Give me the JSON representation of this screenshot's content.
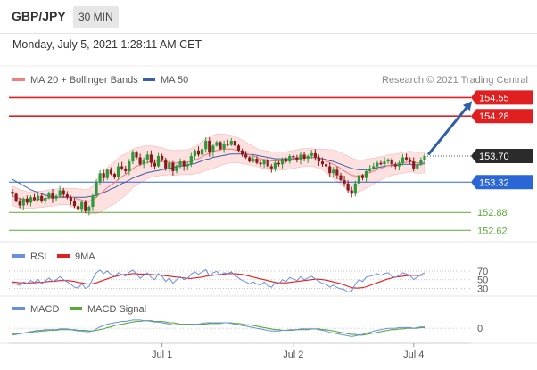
{
  "header": {
    "pair": "GBP/JPY",
    "timeframe": "30 MIN",
    "timestamp": "Monday, July 5, 2021 1:28:11 AM CET"
  },
  "colors": {
    "ma20": "#f08080",
    "ma50": "#3a5fa8",
    "band_fill": "#fde0e0",
    "resistance": "#e02020",
    "support_blue": "#2a66d6",
    "support_green": "#5aaa3a",
    "candle_up": "#2c9a3a",
    "candle_down": "#8a1a1a",
    "arrow": "#2f5fa8",
    "rsi": "#6a8fe0",
    "rsi_ma": "#e02020",
    "macd": "#6a8fe0",
    "macd_signal": "#5aaa3a"
  },
  "chart_data": [
    {
      "type": "candlestick",
      "legend": [
        {
          "name": "MA 20 + Bollinger Bands",
          "color": "#f08080"
        },
        {
          "name": "MA 50",
          "color": "#3a5fa8"
        }
      ],
      "copyright": "Research © 2021 Trading Central",
      "ylim": [
        152.52,
        154.62
      ],
      "x_ticks": [
        "Jul 1",
        "Jul 2",
        "Jul 4"
      ],
      "x_tick_index": [
        41,
        77,
        110
      ],
      "last_price": {
        "label": "153.70",
        "value": 153.7
      },
      "levels": [
        {
          "label": "154.55",
          "value": 154.55,
          "kind": "resistance",
          "color": "#e02020",
          "tag": true
        },
        {
          "label": "154.28",
          "value": 154.28,
          "kind": "resistance",
          "color": "#e02020",
          "tag": true
        },
        {
          "label": "153.32",
          "value": 153.32,
          "kind": "support",
          "color": "#2a66d6",
          "tag": true
        },
        {
          "label": "152.88",
          "value": 152.88,
          "kind": "support",
          "color": "#5aaa3a",
          "tag": false
        },
        {
          "label": "152.62",
          "value": 152.62,
          "kind": "support",
          "color": "#5aaa3a",
          "tag": false
        }
      ],
      "arrow": {
        "from_index": 114,
        "from_value": 153.72,
        "to_index": 126,
        "to_value": 154.5
      },
      "close": [
        153.15,
        153.05,
        152.98,
        153.08,
        153.02,
        153.1,
        153.06,
        153.12,
        153.04,
        153.09,
        153.16,
        153.08,
        153.12,
        153.2,
        153.14,
        153.1,
        153.05,
        152.97,
        152.93,
        153.03,
        152.9,
        152.96,
        153.12,
        153.32,
        153.45,
        153.38,
        153.5,
        153.44,
        153.4,
        153.55,
        153.52,
        153.48,
        153.62,
        153.75,
        153.68,
        153.58,
        153.65,
        153.72,
        153.6,
        153.55,
        153.7,
        153.65,
        153.52,
        153.6,
        153.48,
        153.56,
        153.62,
        153.55,
        153.58,
        153.7,
        153.78,
        153.72,
        153.8,
        153.92,
        153.75,
        153.85,
        153.9,
        153.8,
        153.88,
        153.86,
        153.92,
        153.85,
        153.78,
        153.72,
        153.68,
        153.62,
        153.66,
        153.6,
        153.58,
        153.64,
        153.55,
        153.52,
        153.6,
        153.58,
        153.66,
        153.62,
        153.7,
        153.68,
        153.64,
        153.72,
        153.66,
        153.7,
        153.74,
        153.68,
        153.62,
        153.58,
        153.55,
        153.45,
        153.5,
        153.42,
        153.35,
        153.3,
        153.2,
        153.15,
        153.3,
        153.42,
        153.38,
        153.48,
        153.52,
        153.55,
        153.6,
        153.58,
        153.62,
        153.65,
        153.58,
        153.55,
        153.6,
        153.68,
        153.65,
        153.62,
        153.52,
        153.58,
        153.64,
        153.7
      ],
      "ma20": [
        153.12,
        153.1,
        153.08,
        153.07,
        153.06,
        153.06,
        153.06,
        153.07,
        153.07,
        153.08,
        153.09,
        153.09,
        153.1,
        153.11,
        153.11,
        153.11,
        153.1,
        153.09,
        153.07,
        153.06,
        153.04,
        153.04,
        153.06,
        153.1,
        153.15,
        153.19,
        153.24,
        153.28,
        153.31,
        153.36,
        153.4,
        153.43,
        153.47,
        153.52,
        153.55,
        153.57,
        153.59,
        153.61,
        153.62,
        153.62,
        153.62,
        153.62,
        153.61,
        153.61,
        153.6,
        153.6,
        153.61,
        153.61,
        153.61,
        153.62,
        153.64,
        153.66,
        153.69,
        153.72,
        153.74,
        153.76,
        153.78,
        153.79,
        153.8,
        153.8,
        153.8,
        153.79,
        153.78,
        153.76,
        153.74,
        153.72,
        153.7,
        153.68,
        153.66,
        153.65,
        153.64,
        153.63,
        153.63,
        153.63,
        153.63,
        153.63,
        153.64,
        153.65,
        153.66,
        153.67,
        153.68,
        153.68,
        153.68,
        153.67,
        153.66,
        153.65,
        153.63,
        153.6,
        153.58,
        153.55,
        153.52,
        153.48,
        153.45,
        153.42,
        153.41,
        153.41,
        153.42,
        153.44,
        153.46,
        153.48,
        153.5,
        153.52,
        153.54,
        153.56,
        153.57,
        153.58,
        153.59,
        153.6,
        153.61,
        153.62,
        153.61,
        153.6,
        153.6,
        153.61
      ],
      "ma50": [
        153.36,
        153.33,
        153.3,
        153.27,
        153.24,
        153.21,
        153.19,
        153.17,
        153.15,
        153.13,
        153.12,
        153.11,
        153.1,
        153.1,
        153.1,
        153.1,
        153.1,
        153.1,
        153.1,
        153.1,
        153.1,
        153.11,
        153.12,
        153.13,
        153.15,
        153.17,
        153.19,
        153.22,
        153.24,
        153.27,
        153.3,
        153.32,
        153.35,
        153.38,
        153.4,
        153.42,
        153.44,
        153.46,
        153.47,
        153.48,
        153.49,
        153.5,
        153.51,
        153.52,
        153.53,
        153.54,
        153.55,
        153.56,
        153.57,
        153.58,
        153.59,
        153.61,
        153.63,
        153.65,
        153.66,
        153.68,
        153.69,
        153.7,
        153.71,
        153.72,
        153.73,
        153.73,
        153.73,
        153.73,
        153.73,
        153.72,
        153.72,
        153.71,
        153.7,
        153.69,
        153.68,
        153.67,
        153.66,
        153.66,
        153.66,
        153.66,
        153.66,
        153.66,
        153.67,
        153.67,
        153.68,
        153.68,
        153.68,
        153.68,
        153.67,
        153.66,
        153.65,
        153.63,
        153.62,
        153.6,
        153.58,
        153.56,
        153.54,
        153.52,
        153.51,
        153.5,
        153.5,
        153.5,
        153.51,
        153.52,
        153.53,
        153.54,
        153.55,
        153.56,
        153.56,
        153.56,
        153.57,
        153.58,
        153.58,
        153.58,
        153.57,
        153.57,
        153.58,
        153.59
      ],
      "band_width": [
        0.14,
        0.14,
        0.13,
        0.13,
        0.12,
        0.12,
        0.12,
        0.12,
        0.12,
        0.12,
        0.12,
        0.12,
        0.12,
        0.12,
        0.12,
        0.12,
        0.13,
        0.14,
        0.15,
        0.16,
        0.17,
        0.18,
        0.2,
        0.24,
        0.27,
        0.28,
        0.29,
        0.3,
        0.31,
        0.31,
        0.31,
        0.3,
        0.29,
        0.28,
        0.27,
        0.26,
        0.25,
        0.24,
        0.23,
        0.22,
        0.21,
        0.2,
        0.19,
        0.18,
        0.18,
        0.18,
        0.18,
        0.18,
        0.18,
        0.19,
        0.2,
        0.21,
        0.22,
        0.23,
        0.24,
        0.24,
        0.24,
        0.23,
        0.22,
        0.21,
        0.2,
        0.19,
        0.18,
        0.17,
        0.16,
        0.15,
        0.14,
        0.13,
        0.13,
        0.13,
        0.13,
        0.13,
        0.13,
        0.13,
        0.13,
        0.13,
        0.13,
        0.13,
        0.13,
        0.13,
        0.13,
        0.13,
        0.13,
        0.13,
        0.14,
        0.15,
        0.17,
        0.19,
        0.21,
        0.22,
        0.23,
        0.24,
        0.25,
        0.25,
        0.24,
        0.23,
        0.22,
        0.21,
        0.2,
        0.19,
        0.18,
        0.17,
        0.16,
        0.16,
        0.15,
        0.15,
        0.15,
        0.15,
        0.15,
        0.15,
        0.15,
        0.15,
        0.15,
        0.15
      ]
    },
    {
      "type": "line",
      "name": "rsi-panel",
      "legend": [
        {
          "name": "RSI",
          "color": "#6a8fe0"
        },
        {
          "name": "9MA",
          "color": "#e02020"
        }
      ],
      "ylim": [
        25,
        78
      ],
      "levels": [
        {
          "label": "70",
          "value": 70
        },
        {
          "label": "50",
          "value": 50
        },
        {
          "label": "30",
          "value": 30
        }
      ],
      "rsi": [
        42,
        40,
        37,
        45,
        42,
        48,
        44,
        50,
        41,
        47,
        54,
        46,
        50,
        57,
        50,
        45,
        40,
        33,
        31,
        41,
        30,
        35,
        52,
        66,
        72,
        64,
        70,
        62,
        57,
        66,
        62,
        58,
        67,
        72,
        63,
        53,
        60,
        66,
        55,
        50,
        64,
        58,
        46,
        54,
        42,
        50,
        57,
        50,
        53,
        63,
        68,
        62,
        68,
        73,
        58,
        66,
        69,
        60,
        66,
        64,
        68,
        60,
        54,
        48,
        45,
        40,
        45,
        40,
        38,
        45,
        36,
        33,
        43,
        40,
        50,
        46,
        55,
        52,
        48,
        57,
        50,
        54,
        58,
        52,
        46,
        42,
        40,
        33,
        38,
        32,
        29,
        27,
        22,
        24,
        40,
        50,
        46,
        56,
        58,
        60,
        64,
        60,
        64,
        66,
        58,
        55,
        60,
        66,
        63,
        60,
        50,
        56,
        62,
        66
      ],
      "rsi_ma": [
        45,
        44,
        43,
        43,
        42,
        43,
        43,
        44,
        44,
        45,
        46,
        46,
        47,
        48,
        48,
        48,
        47,
        46,
        44,
        43,
        41,
        40,
        41,
        43,
        46,
        49,
        52,
        55,
        57,
        59,
        61,
        62,
        63,
        64,
        64,
        63,
        63,
        62,
        62,
        61,
        61,
        60,
        59,
        58,
        57,
        56,
        55,
        54,
        53,
        53,
        54,
        55,
        56,
        58,
        59,
        60,
        61,
        62,
        63,
        64,
        64,
        64,
        63,
        62,
        60,
        58,
        56,
        54,
        52,
        50,
        48,
        46,
        44,
        43,
        43,
        43,
        44,
        45,
        46,
        47,
        48,
        49,
        50,
        51,
        51,
        50,
        49,
        47,
        45,
        43,
        41,
        38,
        35,
        32,
        31,
        31,
        32,
        34,
        37,
        40,
        43,
        46,
        49,
        52,
        54,
        56,
        57,
        58,
        59,
        60,
        60,
        60,
        60,
        61
      ]
    },
    {
      "type": "line",
      "name": "macd-panel",
      "legend": [
        {
          "name": "MACD",
          "color": "#6a8fe0"
        },
        {
          "name": "MACD Signal",
          "color": "#5aaa3a"
        }
      ],
      "ylim": [
        -0.18,
        0.21
      ],
      "levels": [
        {
          "label": "0",
          "value": 0
        }
      ],
      "macd": [
        -0.1,
        -0.09,
        -0.08,
        -0.07,
        -0.06,
        -0.05,
        -0.04,
        -0.03,
        -0.03,
        -0.02,
        -0.02,
        -0.02,
        -0.02,
        -0.01,
        -0.01,
        -0.01,
        -0.02,
        -0.03,
        -0.04,
        -0.04,
        -0.05,
        -0.05,
        -0.04,
        -0.01,
        0.02,
        0.04,
        0.06,
        0.07,
        0.08,
        0.09,
        0.1,
        0.1,
        0.11,
        0.12,
        0.12,
        0.12,
        0.11,
        0.11,
        0.1,
        0.09,
        0.09,
        0.08,
        0.07,
        0.06,
        0.05,
        0.05,
        0.05,
        0.05,
        0.05,
        0.05,
        0.06,
        0.06,
        0.07,
        0.08,
        0.08,
        0.08,
        0.08,
        0.08,
        0.08,
        0.08,
        0.07,
        0.06,
        0.05,
        0.04,
        0.03,
        0.02,
        0.01,
        0.0,
        -0.01,
        -0.02,
        -0.03,
        -0.04,
        -0.04,
        -0.04,
        -0.03,
        -0.03,
        -0.02,
        -0.02,
        -0.02,
        -0.01,
        -0.01,
        -0.01,
        -0.01,
        -0.01,
        -0.02,
        -0.03,
        -0.04,
        -0.06,
        -0.07,
        -0.08,
        -0.09,
        -0.1,
        -0.11,
        -0.12,
        -0.11,
        -0.1,
        -0.09,
        -0.07,
        -0.06,
        -0.04,
        -0.03,
        -0.02,
        -0.01,
        0.0,
        0.0,
        0.0,
        0.01,
        0.01,
        0.01,
        0.01,
        0.0,
        0.01,
        0.02,
        0.02
      ],
      "signal": [
        -0.08,
        -0.08,
        -0.08,
        -0.07,
        -0.07,
        -0.06,
        -0.05,
        -0.05,
        -0.04,
        -0.04,
        -0.03,
        -0.03,
        -0.03,
        -0.02,
        -0.02,
        -0.02,
        -0.02,
        -0.02,
        -0.03,
        -0.03,
        -0.03,
        -0.04,
        -0.04,
        -0.03,
        -0.02,
        -0.01,
        0.01,
        0.02,
        0.04,
        0.05,
        0.06,
        0.07,
        0.08,
        0.09,
        0.1,
        0.1,
        0.11,
        0.11,
        0.11,
        0.1,
        0.1,
        0.1,
        0.09,
        0.08,
        0.08,
        0.07,
        0.06,
        0.06,
        0.06,
        0.06,
        0.06,
        0.06,
        0.06,
        0.06,
        0.07,
        0.07,
        0.07,
        0.07,
        0.08,
        0.08,
        0.08,
        0.07,
        0.07,
        0.06,
        0.05,
        0.05,
        0.04,
        0.03,
        0.02,
        0.01,
        0.0,
        -0.01,
        -0.02,
        -0.02,
        -0.03,
        -0.03,
        -0.03,
        -0.03,
        -0.02,
        -0.02,
        -0.02,
        -0.02,
        -0.01,
        -0.01,
        -0.01,
        -0.02,
        -0.02,
        -0.03,
        -0.04,
        -0.05,
        -0.06,
        -0.07,
        -0.08,
        -0.09,
        -0.09,
        -0.1,
        -0.1,
        -0.09,
        -0.08,
        -0.07,
        -0.06,
        -0.05,
        -0.04,
        -0.03,
        -0.02,
        -0.02,
        -0.01,
        -0.01,
        0.0,
        0.0,
        0.0,
        0.0,
        0.01,
        0.01
      ]
    }
  ]
}
